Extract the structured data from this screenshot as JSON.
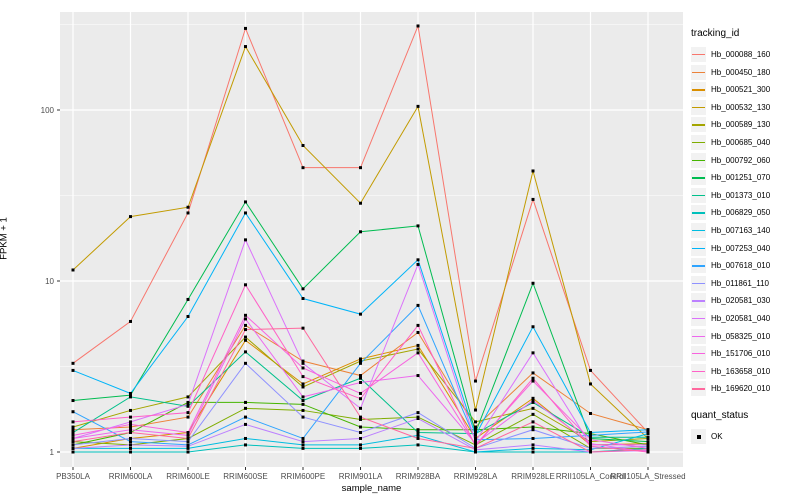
{
  "figure": {
    "background": "#FFFFFF",
    "panel_background": "#EBEBEB",
    "gridline_color": "#FFFFFF",
    "tick_label_color": "#4D4D4D"
  },
  "chart_data": {
    "type": "line",
    "title": "",
    "xlabel": "sample_name",
    "ylabel": "FPKM + 1",
    "y_scale": "log10",
    "y_ticks": [
      1,
      10,
      100
    ],
    "y_minor_ticks": [
      3.162,
      31.62,
      316.2
    ],
    "ylim": [
      0.82,
      380
    ],
    "legend_position": "right",
    "grid": "on",
    "point_marker": "small-black-square",
    "categories": [
      "PB350LA",
      "RRIM600LA",
      "RRIM600LE",
      "RRIM600SE",
      "RRIM600PE",
      "RRIM901LA",
      "RRIM928BA",
      "RRIM928LA",
      "RRIM928LE",
      "RRII105LA_Control",
      "RRII105LA_Stressed"
    ],
    "series": [
      {
        "name": "Hb_000088_160",
        "color": "#F8766D",
        "values": [
          3.3,
          5.8,
          25,
          300,
          46,
          46,
          310,
          2.6,
          30,
          3.0,
          1.3
        ]
      },
      {
        "name": "Hb_000450_180",
        "color": "#EC8239",
        "values": [
          1.35,
          1.4,
          1.6,
          5.5,
          3.4,
          2.8,
          5.0,
          1.4,
          2.9,
          1.68,
          1.35
        ]
      },
      {
        "name": "Hb_000521_300",
        "color": "#DA8F00",
        "values": [
          1.05,
          1.2,
          1.3,
          4.5,
          2.5,
          3.5,
          4.2,
          1.2,
          2.06,
          1.1,
          1.12
        ]
      },
      {
        "name": "Hb_000532_130",
        "color": "#C29B00",
        "values": [
          11.6,
          23.8,
          27,
          235,
          62,
          28.5,
          105,
          1.76,
          44,
          2.5,
          1.2
        ]
      },
      {
        "name": "Hb_000589_130",
        "color": "#A4A500",
        "values": [
          1.4,
          1.75,
          2.1,
          4.7,
          2.4,
          3.4,
          4.0,
          1.5,
          1.8,
          1.15,
          1.2
        ]
      },
      {
        "name": "Hb_000685_040",
        "color": "#7FAD00",
        "values": [
          1.15,
          1.1,
          1.2,
          1.8,
          1.75,
          1.55,
          1.6,
          1.1,
          1.66,
          1.05,
          1.05
        ]
      },
      {
        "name": "Hb_000792_060",
        "color": "#45B500",
        "values": [
          1.1,
          1.3,
          1.95,
          1.95,
          1.9,
          1.4,
          1.35,
          1.35,
          1.4,
          1.28,
          1.1
        ]
      },
      {
        "name": "Hb_001251_070",
        "color": "#00BC51",
        "values": [
          2.0,
          2.15,
          7.8,
          29,
          9.0,
          19.4,
          21,
          1.3,
          9.7,
          1.2,
          1.15
        ]
      },
      {
        "name": "Hb_001373_010",
        "color": "#00C08B",
        "values": [
          1.3,
          2.1,
          1.85,
          3.85,
          2.0,
          2.7,
          1.3,
          1.28,
          1.95,
          1.22,
          1.22
        ]
      },
      {
        "name": "Hb_006829_050",
        "color": "#00C0BB",
        "values": [
          1.0,
          1.0,
          1.0,
          1.1,
          1.05,
          1.05,
          1.1,
          1.0,
          1.0,
          1.0,
          1.05
        ]
      },
      {
        "name": "Hb_007163_140",
        "color": "#00BDE0",
        "values": [
          1.05,
          1.05,
          1.05,
          1.2,
          1.1,
          1.1,
          1.25,
          1.0,
          1.05,
          1.03,
          1.28
        ]
      },
      {
        "name": "Hb_007253_040",
        "color": "#00B4F8",
        "values": [
          3.0,
          2.2,
          6.2,
          25,
          7.9,
          6.4,
          13.3,
          1.25,
          5.4,
          1.3,
          1.35
        ]
      },
      {
        "name": "Hb_007618_010",
        "color": "#2FA4FF",
        "values": [
          1.72,
          1.15,
          1.1,
          1.6,
          1.2,
          3.3,
          7.2,
          1.18,
          1.2,
          1.25,
          1.31
        ]
      },
      {
        "name": "Hb_011861_110",
        "color": "#8F91FF",
        "values": [
          1.1,
          1.2,
          1.15,
          3.3,
          1.6,
          1.3,
          1.7,
          1.05,
          1.35,
          1.05,
          1.08
        ]
      },
      {
        "name": "Hb_020581_030",
        "color": "#BC81FF",
        "values": [
          1.05,
          1.1,
          1.08,
          1.45,
          1.15,
          1.2,
          1.57,
          1.03,
          1.1,
          1.0,
          1.02
        ]
      },
      {
        "name": "Hb_020581_040",
        "color": "#DB72FB",
        "values": [
          1.2,
          1.5,
          1.9,
          17.4,
          3.3,
          1.8,
          12.5,
          1.15,
          3.8,
          1.1,
          1.1
        ]
      },
      {
        "name": "Hb_058325_010",
        "color": "#ED68EE",
        "values": [
          1.2,
          1.35,
          1.25,
          6.0,
          2.1,
          2.55,
          2.8,
          1.12,
          2.0,
          1.12,
          1.0
        ]
      },
      {
        "name": "Hb_151706_010",
        "color": "#F863DF",
        "values": [
          1.25,
          1.45,
          1.3,
          6.3,
          3.1,
          2.2,
          3.8,
          1.1,
          2.6,
          1.18,
          1.05
        ]
      },
      {
        "name": "Hb_163658_010",
        "color": "#FF61C7",
        "values": [
          1.5,
          1.6,
          1.7,
          9.5,
          2.76,
          2.05,
          5.5,
          1.08,
          2.7,
          1.08,
          1.0
        ]
      },
      {
        "name": "Hb_169620_010",
        "color": "#FF689E",
        "values": [
          1.15,
          1.3,
          1.2,
          5.2,
          5.3,
          1.6,
          1.2,
          1.05,
          1.5,
          1.0,
          1.03
        ]
      }
    ]
  },
  "legend_tracking": {
    "title": "tracking_id"
  },
  "legend_quant": {
    "title": "quant_status",
    "ok_label": "OK"
  }
}
